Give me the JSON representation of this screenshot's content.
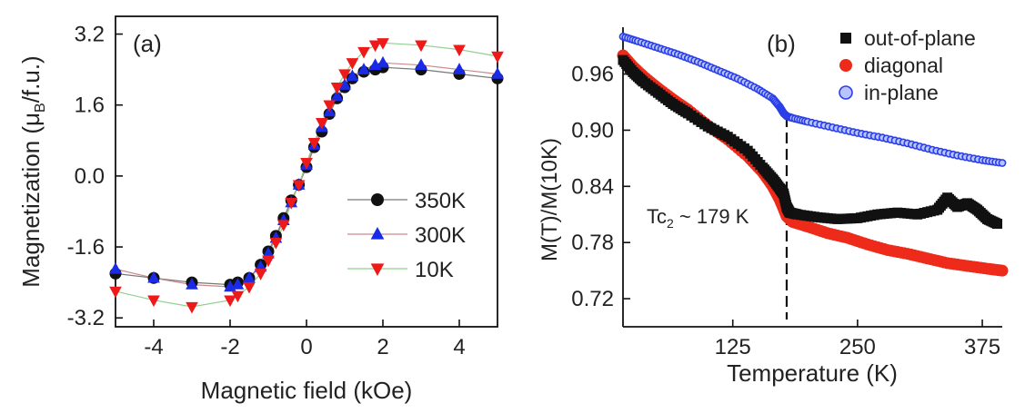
{
  "chart_data": [
    {
      "type": "scatter",
      "panel_label": "(a)",
      "xlabel": "Magnetic field (kOe)",
      "ylabel_main": "Magnetization (μ",
      "ylabel_sub": "B",
      "ylabel_tail": "/f.u.)",
      "xlim": [
        -5,
        5
      ],
      "ylim": [
        -3.4,
        3.6
      ],
      "xticks": [
        -4,
        -2,
        0,
        2,
        4
      ],
      "xtick_labels": [
        "-4",
        "-2",
        "0",
        "2",
        "4"
      ],
      "yticks": [
        3.2,
        1.6,
        0.0,
        -1.6,
        -3.2
      ],
      "ytick_labels": [
        "3.2",
        "1.6",
        "0.0",
        "-1.6",
        "-3.2"
      ],
      "legend_position": "lower-right",
      "series": [
        {
          "name": "350K",
          "marker": "circle",
          "color": "#111111",
          "line_color": "#777777",
          "x": [
            -5,
            -4,
            -3,
            -2,
            -1.8,
            -1.5,
            -1.2,
            -1,
            -0.8,
            -0.6,
            -0.4,
            -0.2,
            0,
            0.2,
            0.4,
            0.6,
            0.8,
            1,
            1.2,
            1.5,
            1.8,
            2,
            3,
            4,
            5
          ],
          "y": [
            -2.2,
            -2.3,
            -2.4,
            -2.45,
            -2.4,
            -2.3,
            -2.0,
            -1.7,
            -1.35,
            -0.95,
            -0.55,
            -0.2,
            0.2,
            0.65,
            1.0,
            1.4,
            1.75,
            2.0,
            2.2,
            2.35,
            2.4,
            2.45,
            2.4,
            2.3,
            2.2
          ]
        },
        {
          "name": "300K",
          "marker": "triangle-up",
          "color": "#1a2be8",
          "line_color": "#c98a8a",
          "x": [
            -5,
            -4,
            -3,
            -2,
            -1.8,
            -1.5,
            -1.2,
            -1,
            -0.8,
            -0.6,
            -0.4,
            -0.2,
            0,
            0.2,
            0.4,
            0.6,
            0.8,
            1,
            1.2,
            1.5,
            1.8,
            2,
            3,
            4,
            5
          ],
          "y": [
            -2.1,
            -2.3,
            -2.45,
            -2.5,
            -2.45,
            -2.3,
            -2.05,
            -1.75,
            -1.4,
            -1.0,
            -0.6,
            -0.2,
            0.25,
            0.7,
            1.1,
            1.45,
            1.8,
            2.05,
            2.25,
            2.4,
            2.5,
            2.55,
            2.5,
            2.4,
            2.3
          ]
        },
        {
          "name": "10K",
          "marker": "triangle-down",
          "color": "#ee1a1a",
          "line_color": "#8fd08f",
          "x": [
            -5,
            -4,
            -3,
            -2,
            -1.8,
            -1.5,
            -1.2,
            -1,
            -0.8,
            -0.6,
            -0.4,
            -0.2,
            0,
            0.2,
            0.4,
            0.6,
            0.8,
            1,
            1.2,
            1.5,
            1.8,
            2,
            3,
            4,
            5
          ],
          "y": [
            -2.6,
            -2.8,
            -2.95,
            -2.8,
            -2.7,
            -2.5,
            -2.2,
            -1.9,
            -1.5,
            -1.1,
            -0.6,
            -0.2,
            0.3,
            0.75,
            1.2,
            1.6,
            2.0,
            2.3,
            2.55,
            2.8,
            2.95,
            3.0,
            2.95,
            2.85,
            2.7
          ]
        }
      ]
    },
    {
      "type": "scatter",
      "panel_label": "(b)",
      "xlabel": "Temperature (K)",
      "ylabel": "M(T)/M(10K)",
      "xlim": [
        15,
        395
      ],
      "ylim": [
        0.69,
        1.01
      ],
      "xticks": [
        125,
        250,
        375
      ],
      "xtick_labels": [
        "125",
        "250",
        "375"
      ],
      "yticks": [
        0.96,
        0.9,
        0.84,
        0.78,
        0.72
      ],
      "ytick_labels": [
        "0.96",
        "0.90",
        "0.84",
        "0.78",
        "0.72"
      ],
      "legend_position": "top-right",
      "annotation": {
        "text_main": "Tc",
        "text_sub": "2",
        "text_tail": " ~ 179 K",
        "x_value": 179
      },
      "series": [
        {
          "name": "out-of-plane",
          "marker": "square",
          "color": "#111111",
          "x": [
            15,
            25,
            35,
            50,
            65,
            80,
            100,
            120,
            140,
            155,
            165,
            172,
            176,
            179,
            182,
            190,
            210,
            230,
            250,
            270,
            290,
            310,
            330,
            340,
            350,
            360,
            370,
            380,
            390
          ],
          "y": [
            0.975,
            0.962,
            0.952,
            0.94,
            0.928,
            0.918,
            0.904,
            0.893,
            0.878,
            0.86,
            0.848,
            0.838,
            0.832,
            0.818,
            0.812,
            0.81,
            0.807,
            0.805,
            0.806,
            0.81,
            0.812,
            0.81,
            0.815,
            0.828,
            0.818,
            0.822,
            0.815,
            0.805,
            0.8
          ]
        },
        {
          "name": "diagonal",
          "marker": "circle",
          "color": "#ee2a1a",
          "x": [
            15,
            25,
            35,
            50,
            65,
            80,
            100,
            120,
            140,
            155,
            165,
            172,
            176,
            179,
            185,
            200,
            220,
            240,
            260,
            280,
            300,
            320,
            340,
            360,
            380,
            395
          ],
          "y": [
            0.98,
            0.968,
            0.958,
            0.945,
            0.933,
            0.922,
            0.905,
            0.89,
            0.872,
            0.855,
            0.84,
            0.826,
            0.816,
            0.808,
            0.802,
            0.797,
            0.79,
            0.785,
            0.778,
            0.772,
            0.768,
            0.763,
            0.758,
            0.755,
            0.752,
            0.75
          ]
        },
        {
          "name": "in-plane",
          "marker": "circle-open",
          "color": "#2a3fe8",
          "x": [
            15,
            30,
            50,
            70,
            90,
            110,
            130,
            150,
            165,
            172,
            176,
            179,
            185,
            200,
            225,
            250,
            275,
            300,
            325,
            350,
            375,
            395
          ],
          "y": [
            1.0,
            0.995,
            0.988,
            0.981,
            0.973,
            0.964,
            0.955,
            0.944,
            0.934,
            0.925,
            0.918,
            0.915,
            0.913,
            0.909,
            0.903,
            0.897,
            0.892,
            0.886,
            0.879,
            0.873,
            0.868,
            0.865
          ]
        }
      ]
    }
  ]
}
